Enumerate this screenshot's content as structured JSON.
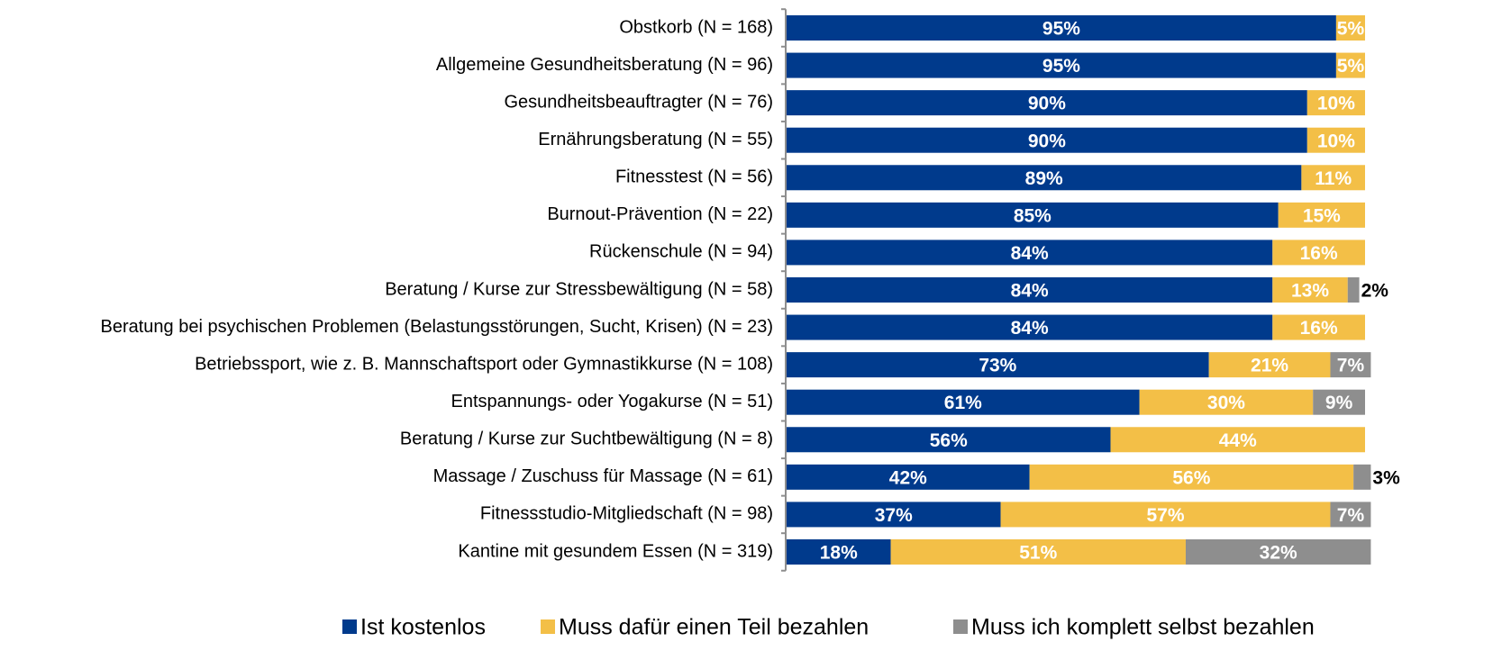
{
  "chart_data": {
    "type": "stacked_barh",
    "categories": [
      "Obstkorb (N = 168)",
      "Allgemeine Gesundheitsberatung (N = 96)",
      "Gesundheitsbeauftragter (N = 76)",
      "Ernährungsberatung (N = 55)",
      "Fitnesstest (N = 56)",
      "Burnout-Prävention (N = 22)",
      "Rückenschule (N = 94)",
      "Beratung / Kurse zur Stressbewältigung (N = 58)",
      "Beratung bei psychischen Problemen (Belastungsstörungen, Sucht, Krisen) (N = 23)",
      "Betriebssport, wie z. B. Mannschaftsport oder Gymnastikkurse (N = 108)",
      "Entspannungs- oder Yogakurse (N = 51)",
      "Beratung / Kurse zur Suchtbewältigung (N = 8)",
      "Massage / Zuschuss für Massage (N = 61)",
      "Fitnessstudio-Mitgliedschaft (N = 98)",
      "Kantine mit gesundem Essen (N = 319)"
    ],
    "series": [
      {
        "name": "Ist kostenlos",
        "color": "#003a8c",
        "values": [
          95,
          95,
          90,
          90,
          89,
          85,
          84,
          84,
          84,
          73,
          61,
          56,
          42,
          37,
          18
        ],
        "value_labels": [
          "95%",
          "95%",
          "90%",
          "90%",
          "89%",
          "85%",
          "84%",
          "84%",
          "84%",
          "73%",
          "61%",
          "56%",
          "42%",
          "37%",
          "18%"
        ]
      },
      {
        "name": "Muss dafür einen Teil  bezahlen",
        "color": "#f3bf47",
        "values": [
          5,
          5,
          10,
          10,
          11,
          15,
          16,
          13,
          16,
          21,
          30,
          44,
          56,
          57,
          51
        ],
        "value_labels": [
          "5%",
          "5%",
          "10%",
          "10%",
          "11%",
          "15%",
          "16%",
          "13%",
          "16%",
          "21%",
          "30%",
          "44%",
          "56%",
          "57%",
          "51%"
        ]
      },
      {
        "name": "Muss ich komplett selbst bezahlen",
        "color": "#8e8e8e",
        "values": [
          null,
          null,
          null,
          null,
          null,
          null,
          null,
          2,
          null,
          7,
          9,
          null,
          3,
          7,
          32
        ],
        "value_labels": [
          null,
          null,
          null,
          null,
          null,
          null,
          null,
          "2%",
          null,
          "7%",
          "9%",
          null,
          "3%",
          "7%",
          "32%"
        ]
      }
    ]
  }
}
